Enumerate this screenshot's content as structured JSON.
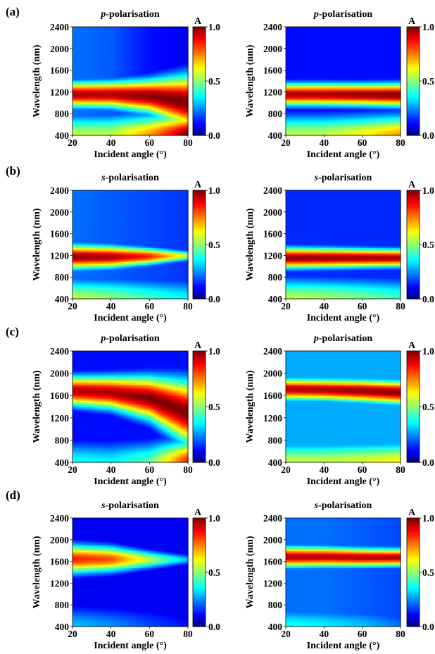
{
  "figure": {
    "row_labels": [
      "(a)",
      "(b)",
      "(c)",
      "(d)"
    ]
  },
  "colormap": {
    "name": "jet",
    "stops": [
      "#00007f",
      "#0000ff",
      "#00ffff",
      "#ffff00",
      "#ff0000",
      "#7f0000"
    ]
  },
  "chart_data": [
    {
      "type": "heatmap",
      "panel": "a-left",
      "row_label": "(a)",
      "title_italic": "p",
      "title_rest": "-polarisation",
      "xlabel": "Incident angle (°)",
      "ylabel": "Wavelength (nm)",
      "xlim": [
        20,
        80
      ],
      "ylim": [
        400,
        2400
      ],
      "xticks": [
        "20",
        "40",
        "60",
        "80"
      ],
      "yticks": [
        "400",
        "800",
        "1200",
        "1600",
        "2000",
        "2400"
      ],
      "colorbar": {
        "label": "A",
        "range": [
          0.0,
          1.0
        ],
        "ticks": [
          "0.0",
          "0.5",
          "1.0"
        ]
      },
      "model": {
        "band_center_nm": [
          1160,
          1160,
          1130,
          1030
        ],
        "band_width_nm": [
          230,
          240,
          300,
          480
        ],
        "band_peak": [
          0.95,
          0.95,
          0.99,
          1.0
        ],
        "low_wl_absorption": [
          0.55,
          0.55,
          0.72,
          0.98
        ],
        "background": [
          0.22,
          0.2,
          0.12,
          0.1
        ]
      }
    },
    {
      "type": "heatmap",
      "panel": "a-right",
      "row_label": "",
      "title_italic": "p",
      "title_rest": "-polarisation",
      "xlabel": "Incident angle (°)",
      "ylabel": "Wavelength (nm)",
      "xlim": [
        20,
        80
      ],
      "ylim": [
        400,
        2400
      ],
      "xticks": [
        "20",
        "40",
        "60",
        "80"
      ],
      "yticks": [
        "400",
        "800",
        "1200",
        "1600",
        "2000",
        "2400"
      ],
      "colorbar": {
        "label": "A",
        "range": [
          0.0,
          1.0
        ],
        "ticks": [
          "0.0",
          "0.5",
          "1.0"
        ]
      },
      "model": {
        "band_center_nm": [
          1160,
          1160,
          1155,
          1150
        ],
        "band_width_nm": [
          200,
          200,
          200,
          210
        ],
        "band_peak": [
          0.95,
          0.96,
          0.98,
          0.99
        ],
        "low_wl_absorption": [
          0.55,
          0.55,
          0.62,
          0.72
        ],
        "background": [
          0.12,
          0.12,
          0.12,
          0.12
        ]
      }
    },
    {
      "type": "heatmap",
      "panel": "b-left",
      "row_label": "(b)",
      "title_italic": "s",
      "title_rest": "-polarisation",
      "xlabel": "Incident angle (°)",
      "ylabel": "Wavelength (nm)",
      "xlim": [
        20,
        80
      ],
      "ylim": [
        400,
        2400
      ],
      "xticks": [
        "20",
        "40",
        "60",
        "80"
      ],
      "yticks": [
        "400",
        "800",
        "1200",
        "1600",
        "2000",
        "2400"
      ],
      "colorbar": {
        "label": "A",
        "range": [
          0.0,
          1.0
        ],
        "ticks": [
          "0.0",
          "0.5",
          "1.0"
        ]
      },
      "model": {
        "band_center_nm": [
          1180,
          1180,
          1190,
          1200
        ],
        "band_width_nm": [
          220,
          200,
          150,
          90
        ],
        "band_peak": [
          0.98,
          0.96,
          0.85,
          0.55
        ],
        "low_wl_absorption": [
          0.55,
          0.5,
          0.42,
          0.35
        ],
        "background": [
          0.22,
          0.2,
          0.18,
          0.16
        ]
      }
    },
    {
      "type": "heatmap",
      "panel": "b-right",
      "row_label": "",
      "title_italic": "s",
      "title_rest": "-polarisation",
      "xlabel": "Incident angle (°)",
      "ylabel": "Wavelength (nm)",
      "xlim": [
        20,
        80
      ],
      "ylim": [
        400,
        2400
      ],
      "xticks": [
        "20",
        "40",
        "60",
        "80"
      ],
      "yticks": [
        "400",
        "800",
        "1200",
        "1600",
        "2000",
        "2400"
      ],
      "colorbar": {
        "label": "A",
        "range": [
          0.0,
          1.0
        ],
        "ticks": [
          "0.0",
          "0.5",
          "1.0"
        ]
      },
      "model": {
        "band_center_nm": [
          1160,
          1160,
          1160,
          1160
        ],
        "band_width_nm": [
          190,
          180,
          170,
          160
        ],
        "band_peak": [
          0.98,
          0.98,
          0.97,
          0.96
        ],
        "low_wl_absorption": [
          0.55,
          0.52,
          0.48,
          0.42
        ],
        "background": [
          0.15,
          0.15,
          0.15,
          0.15
        ]
      }
    },
    {
      "type": "heatmap",
      "panel": "c-left",
      "row_label": "(c)",
      "title_italic": "p",
      "title_rest": "-polarisation",
      "xlabel": "Incident angle (°)",
      "ylabel": "Wavelength (nm)",
      "xlim": [
        20,
        80
      ],
      "ylim": [
        400,
        2400
      ],
      "xticks": [
        "20",
        "40",
        "60",
        "80"
      ],
      "yticks": [
        "400",
        "800",
        "1200",
        "1600",
        "2000",
        "2400"
      ],
      "colorbar": {
        "label": "A",
        "range": [
          0.0,
          1.0
        ],
        "ticks": [
          "0.0",
          "0.5",
          "1.0"
        ]
      },
      "model": {
        "band_center_nm": [
          1690,
          1660,
          1560,
          1300
        ],
        "band_width_nm": [
          260,
          290,
          380,
          560
        ],
        "band_peak": [
          0.95,
          0.96,
          1.0,
          1.0
        ],
        "low_wl_absorption": [
          0.38,
          0.35,
          0.45,
          0.85
        ],
        "background": [
          0.12,
          0.12,
          0.12,
          0.12
        ]
      }
    },
    {
      "type": "heatmap",
      "panel": "c-right",
      "row_label": "",
      "title_italic": "p",
      "title_rest": "-polarisation",
      "xlabel": "Incident angle (°)",
      "ylabel": "Wavelength (nm)",
      "xlim": [
        20,
        80
      ],
      "ylim": [
        400,
        2400
      ],
      "xticks": [
        "20",
        "40",
        "60",
        "80"
      ],
      "yticks": [
        "400",
        "800",
        "1200",
        "1600",
        "2000",
        "2400"
      ],
      "colorbar": {
        "label": "A",
        "range": [
          0.0,
          1.0
        ],
        "ticks": [
          "0.0",
          "0.5",
          "1.0"
        ]
      },
      "model": {
        "band_center_nm": [
          1720,
          1710,
          1690,
          1660
        ],
        "band_width_nm": [
          190,
          190,
          200,
          210
        ],
        "band_peak": [
          0.95,
          0.96,
          0.98,
          0.99
        ],
        "low_wl_absorption": [
          0.55,
          0.55,
          0.58,
          0.62
        ],
        "background": [
          0.28,
          0.28,
          0.28,
          0.28
        ]
      }
    },
    {
      "type": "heatmap",
      "panel": "d-left",
      "row_label": "(d)",
      "title_italic": "s",
      "title_rest": "-polarisation",
      "xlabel": "Incident angle (°)",
      "ylabel": "Wavelength (nm)",
      "xlim": [
        20,
        80
      ],
      "ylim": [
        400,
        2400
      ],
      "xticks": [
        "20",
        "40",
        "60",
        "80"
      ],
      "yticks": [
        "400",
        "800",
        "1200",
        "1600",
        "2000",
        "2400"
      ],
      "colorbar": {
        "label": "A",
        "range": [
          0.0,
          1.0
        ],
        "ticks": [
          "0.0",
          "0.5",
          "1.0"
        ]
      },
      "model": {
        "band_center_nm": [
          1650,
          1650,
          1640,
          1640
        ],
        "band_width_nm": [
          260,
          230,
          160,
          90
        ],
        "band_peak": [
          0.85,
          0.8,
          0.55,
          0.3
        ],
        "low_wl_absorption": [
          0.3,
          0.25,
          0.18,
          0.12
        ],
        "background": [
          0.1,
          0.1,
          0.1,
          0.1
        ]
      }
    },
    {
      "type": "heatmap",
      "panel": "d-right",
      "row_label": "",
      "title_italic": "s",
      "title_rest": "-polarisation",
      "xlabel": "Incident angle (°)",
      "ylabel": "Wavelength (nm)",
      "xlim": [
        20,
        80
      ],
      "ylim": [
        400,
        2400
      ],
      "xticks": [
        "20",
        "40",
        "60",
        "80"
      ],
      "yticks": [
        "400",
        "800",
        "1200",
        "1600",
        "2000",
        "2400"
      ],
      "colorbar": {
        "label": "A",
        "range": [
          0.0,
          1.0
        ],
        "ticks": [
          "0.0",
          "0.5",
          "1.0"
        ]
      },
      "model": {
        "band_center_nm": [
          1690,
          1690,
          1680,
          1680
        ],
        "band_width_nm": [
          190,
          180,
          170,
          160
        ],
        "band_peak": [
          0.95,
          0.95,
          0.95,
          0.95
        ],
        "low_wl_absorption": [
          0.38,
          0.35,
          0.3,
          0.22
        ],
        "background": [
          0.22,
          0.22,
          0.2,
          0.18
        ]
      }
    }
  ]
}
